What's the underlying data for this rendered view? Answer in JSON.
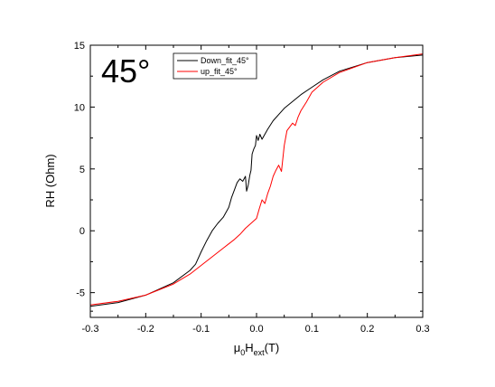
{
  "chart_data": {
    "type": "line",
    "title": "",
    "annotation": "45°",
    "xlabel_main": "μ",
    "xlabel_sub0": "0",
    "xlabel_mid": "H",
    "xlabel_sub1": "ext",
    "xlabel_tail": "(T)",
    "ylabel": "RH (Ohm)",
    "xlim": [
      -0.3,
      0.3
    ],
    "ylim": [
      -7,
      15
    ],
    "x_ticks": [
      -0.3,
      -0.2,
      -0.1,
      0.0,
      0.1,
      0.2,
      0.3
    ],
    "x_tick_labels": [
      "-0.3",
      "-0.2",
      "-0.1",
      "0.0",
      "0.1",
      "0.2",
      "0.3"
    ],
    "y_ticks": [
      -5,
      0,
      5,
      10,
      15
    ],
    "y_tick_labels": [
      "-5",
      "0",
      "5",
      "10",
      "15"
    ],
    "grid": false,
    "legend_position": "top",
    "series": [
      {
        "name": "Down_fit_45°",
        "color": "#000000",
        "x": [
          -0.3,
          -0.25,
          -0.2,
          -0.15,
          -0.12,
          -0.11,
          -0.1,
          -0.09,
          -0.08,
          -0.07,
          -0.06,
          -0.05,
          -0.045,
          -0.04,
          -0.035,
          -0.03,
          -0.025,
          -0.02,
          -0.018,
          -0.015,
          -0.012,
          -0.01,
          -0.008,
          -0.005,
          -0.002,
          0.0,
          0.003,
          0.006,
          0.01,
          0.015,
          0.02,
          0.03,
          0.05,
          0.08,
          0.1,
          0.12,
          0.15,
          0.2,
          0.25,
          0.3
        ],
        "y": [
          -6.1,
          -5.8,
          -5.2,
          -4.2,
          -3.2,
          -2.7,
          -1.7,
          -0.8,
          0.0,
          0.6,
          1.1,
          1.9,
          2.7,
          3.3,
          3.9,
          4.2,
          4.0,
          4.4,
          3.2,
          3.7,
          4.5,
          4.9,
          6.2,
          6.6,
          6.9,
          7.7,
          7.3,
          7.8,
          7.4,
          7.8,
          8.2,
          8.9,
          9.9,
          11.0,
          11.6,
          12.2,
          12.9,
          13.6,
          14.0,
          14.2
        ]
      },
      {
        "name": "up_fit_45°",
        "color": "#ff0000",
        "x": [
          -0.3,
          -0.25,
          -0.2,
          -0.15,
          -0.12,
          -0.1,
          -0.08,
          -0.06,
          -0.04,
          -0.03,
          -0.02,
          -0.01,
          0.0,
          0.005,
          0.01,
          0.015,
          0.02,
          0.025,
          0.03,
          0.035,
          0.04,
          0.045,
          0.05,
          0.055,
          0.06,
          0.065,
          0.07,
          0.075,
          0.08,
          0.09,
          0.1,
          0.12,
          0.15,
          0.2,
          0.25,
          0.3
        ],
        "y": [
          -6.0,
          -5.7,
          -5.2,
          -4.3,
          -3.5,
          -2.8,
          -2.1,
          -1.4,
          -0.7,
          -0.3,
          0.2,
          0.6,
          1.0,
          1.8,
          2.5,
          2.2,
          3.0,
          3.6,
          4.4,
          4.9,
          5.3,
          4.8,
          6.9,
          8.1,
          8.4,
          8.7,
          8.5,
          9.2,
          9.7,
          10.4,
          11.2,
          12.0,
          12.8,
          13.6,
          14.0,
          14.3
        ]
      }
    ]
  }
}
